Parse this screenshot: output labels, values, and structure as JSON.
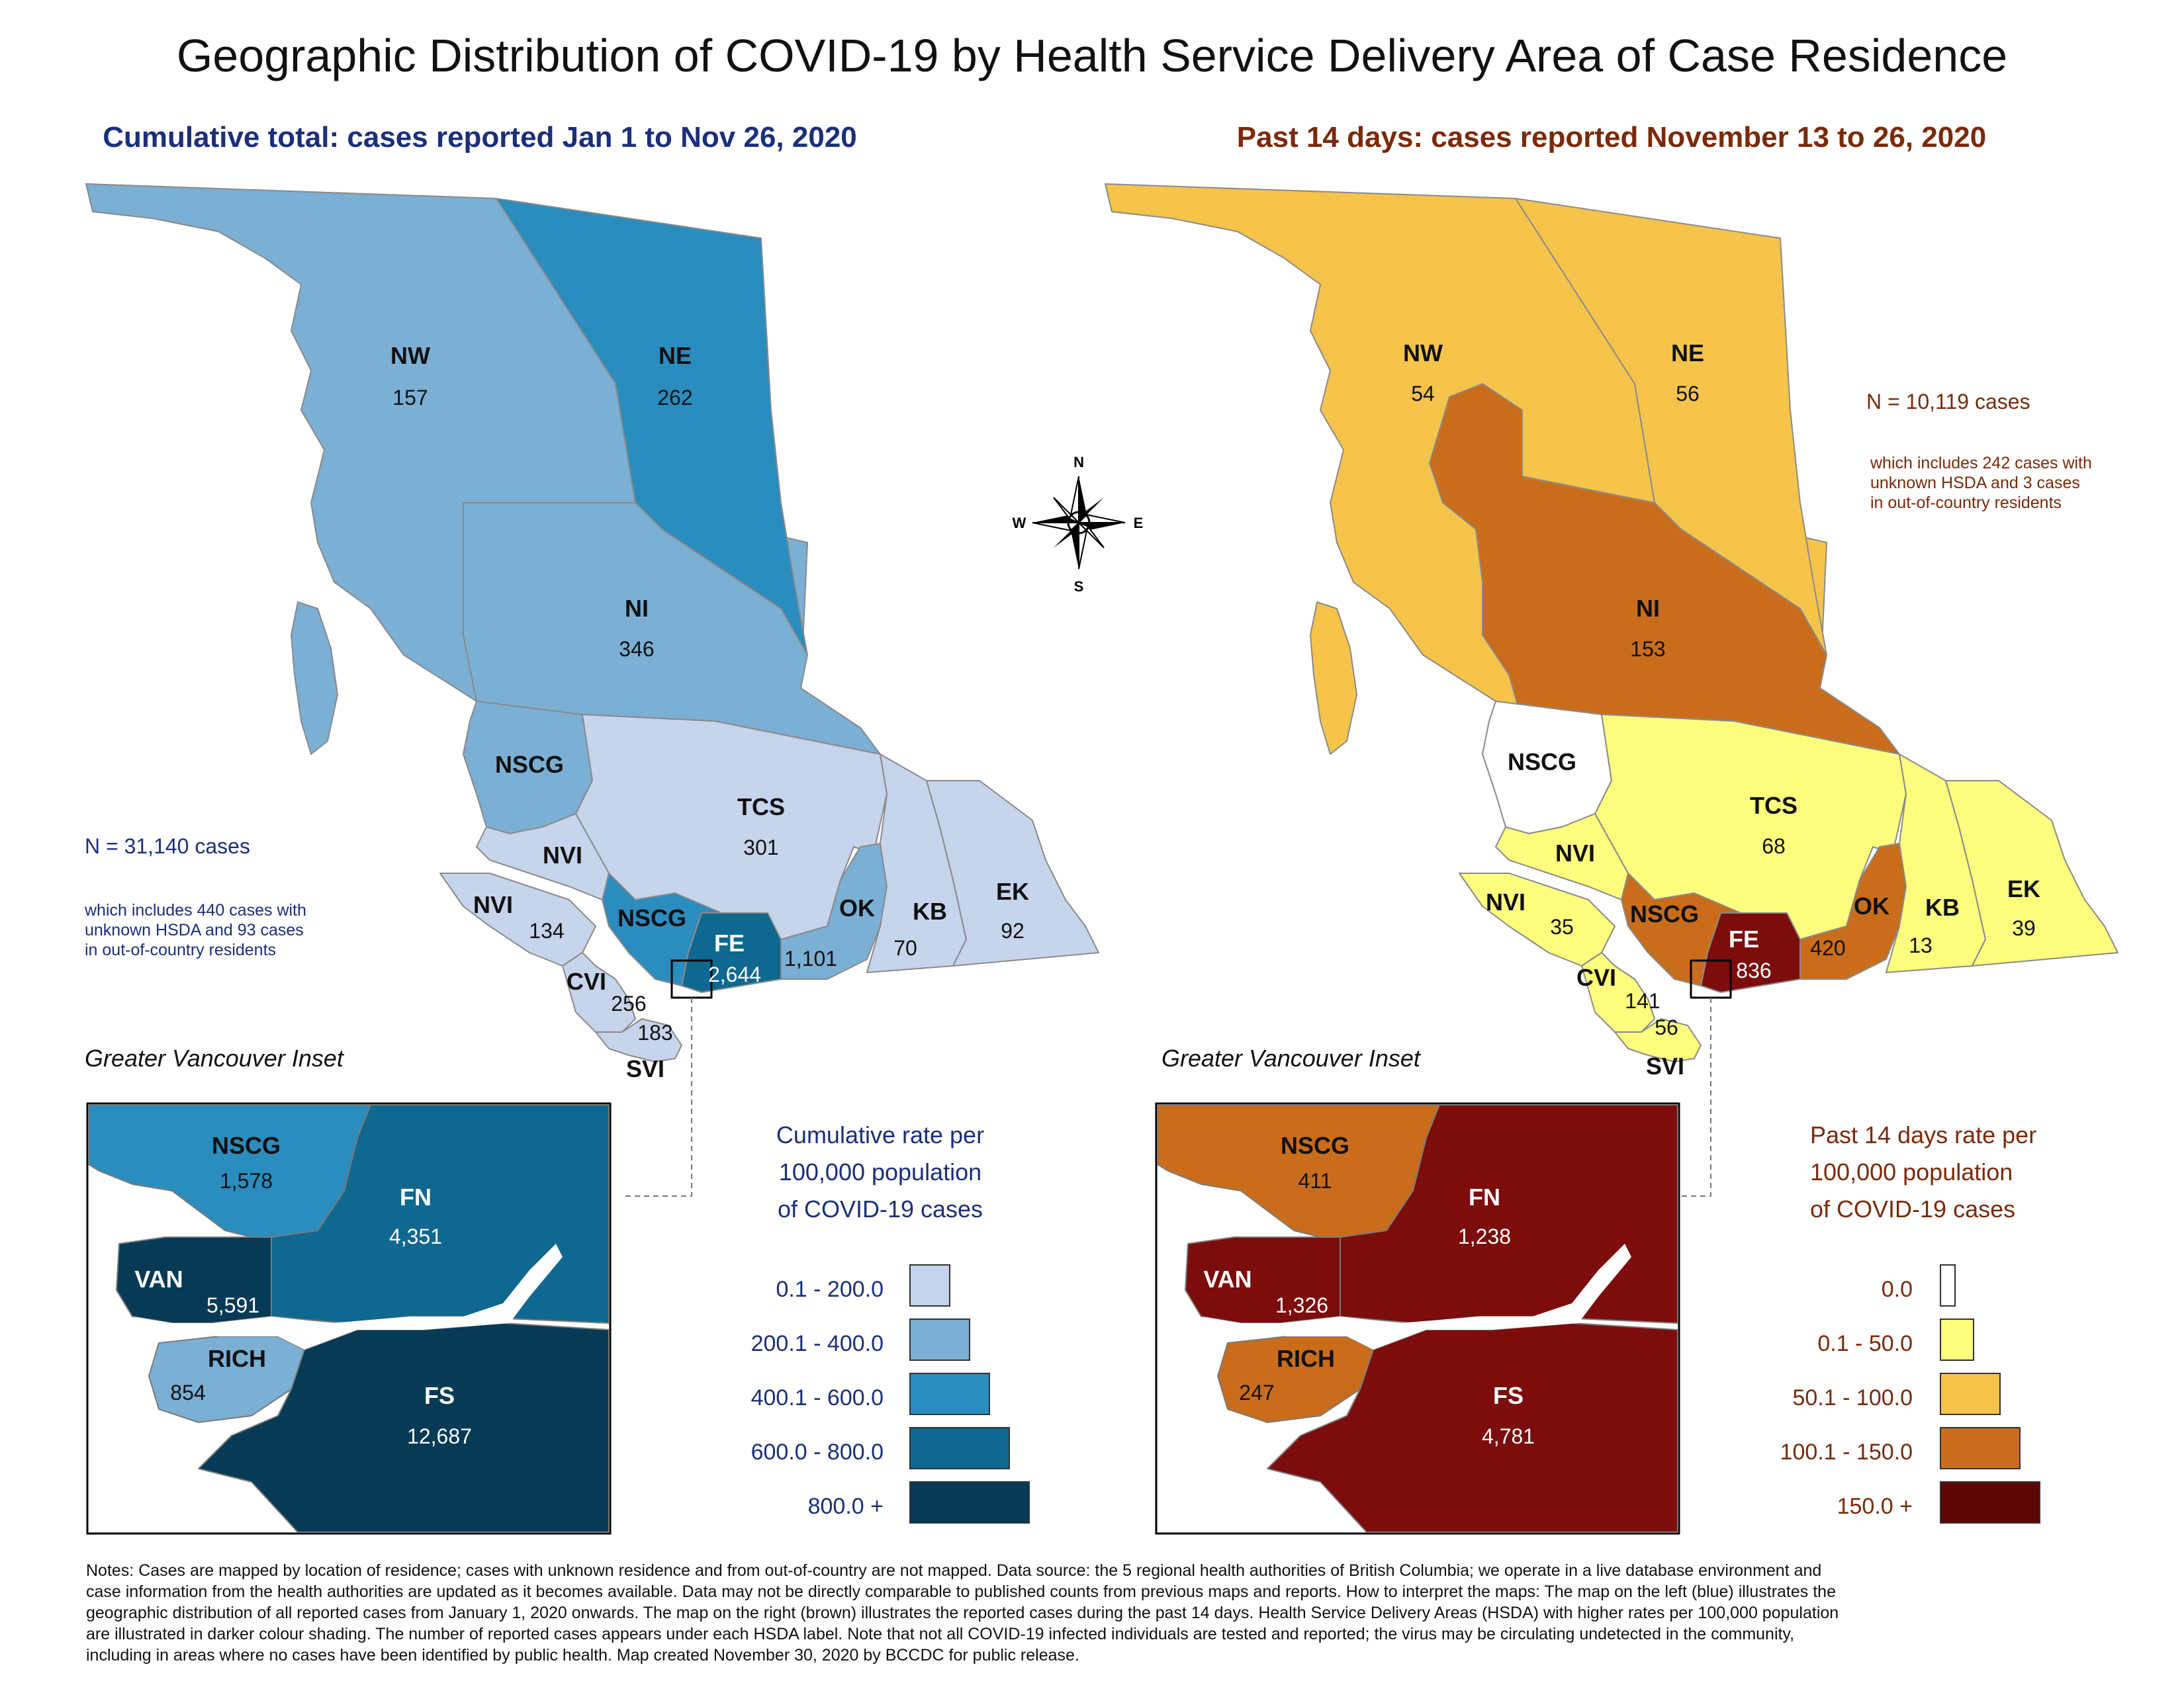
{
  "title": "Geographic Distribution of COVID-19 by Health Service Delivery Area of Case Residence",
  "left": {
    "subtitle": "Cumulative total: cases reported Jan 1 to Nov 26, 2020",
    "total": "N = 31,140 cases",
    "note": [
      "which includes 440 cases with",
      "unknown HSDA and 93 cases",
      "in out-of-country residents"
    ],
    "regions": {
      "NW": {
        "label": "NW",
        "value": "157",
        "color": "#7bafd4"
      },
      "NE": {
        "label": "NE",
        "value": "262",
        "color": "#2b8cbe"
      },
      "NI": {
        "label": "NI",
        "value": "346",
        "color": "#7bafd4"
      },
      "NSCG": {
        "label": "NSCG",
        "color": "#7bafd4"
      },
      "NSCG_S": {
        "label": "NSCG",
        "color": "#2b8cbe"
      },
      "TCS": {
        "label": "TCS",
        "value": "301",
        "color": "#c6d4ec"
      },
      "NVI": {
        "label": "NVI",
        "value": "134",
        "color": "#c6d4ec"
      },
      "NVI_upper": {
        "label": "NVI"
      },
      "CVI": {
        "label": "CVI",
        "value": "256",
        "color": "#c6d4ec"
      },
      "SVI": {
        "label": "SVI",
        "value": "183",
        "color": "#c6d4ec"
      },
      "FE": {
        "label": "FE",
        "value": "2,644",
        "color": "#0f6890"
      },
      "OK": {
        "label": "OK",
        "value": "1,101",
        "color": "#7bafd4"
      },
      "KB": {
        "label": "KB",
        "value": "70",
        "color": "#c6d4ec"
      },
      "EK": {
        "label": "EK",
        "value": "92",
        "color": "#c6d4ec"
      }
    },
    "inset": {
      "title": "Greater Vancouver Inset",
      "NSCG": {
        "label": "NSCG",
        "value": "1,578",
        "color": "#2b8cbe"
      },
      "FN": {
        "label": "FN",
        "value": "4,351",
        "color": "#0f6890"
      },
      "VAN": {
        "label": "VAN",
        "value": "5,591",
        "color": "#063a55"
      },
      "RICH": {
        "label": "RICH",
        "value": "854",
        "color": "#7bafd4"
      },
      "FS": {
        "label": "FS",
        "value": "12,687",
        "color": "#063a55"
      }
    },
    "legend": {
      "title": [
        "Cumulative rate per",
        "100,000 population",
        "of COVID-19 cases"
      ],
      "items": [
        {
          "label": "0.1 - 200.0",
          "color": "#c6d4ec"
        },
        {
          "label": "200.1 - 400.0",
          "color": "#7bafd4"
        },
        {
          "label": "400.1 - 600.0",
          "color": "#2b8cbe"
        },
        {
          "label": "600.0 - 800.0",
          "color": "#0f6890"
        },
        {
          "label": "800.0 +",
          "color": "#063a55"
        }
      ]
    }
  },
  "right": {
    "subtitle": "Past 14 days: cases reported November 13 to 26, 2020",
    "total": "N = 10,119 cases",
    "note": [
      "which includes 242 cases with",
      "unknown HSDA and 3 cases",
      "in out-of-country residents"
    ],
    "regions": {
      "NW": {
        "label": "NW",
        "value": "54",
        "color": "#f6c44b"
      },
      "NE": {
        "label": "NE",
        "value": "56",
        "color": "#f6c44b"
      },
      "NI": {
        "label": "NI",
        "value": "153",
        "color": "#c96d1c"
      },
      "NSCG": {
        "label": "NSCG",
        "color": "#ffffff"
      },
      "NSCG_S": {
        "label": "NSCG",
        "color": "#c96d1c"
      },
      "TCS": {
        "label": "TCS",
        "value": "68",
        "color": "#fdfd7e"
      },
      "NVI": {
        "label": "NVI",
        "value": "35",
        "color": "#fdfd7e"
      },
      "NVI_upper": {
        "label": "NVI"
      },
      "CVI": {
        "label": "CVI",
        "value": "141",
        "color": "#fdfd7e"
      },
      "SVI": {
        "label": "SVI",
        "value": "56",
        "color": "#fdfd7e"
      },
      "FE": {
        "label": "FE",
        "value": "836",
        "color": "#7d0c0c"
      },
      "OK": {
        "label": "OK",
        "value": "420",
        "color": "#c96d1c"
      },
      "KB": {
        "label": "KB",
        "value": "13",
        "color": "#fdfd7e"
      },
      "EK": {
        "label": "EK",
        "value": "39",
        "color": "#fdfd7e"
      }
    },
    "inset": {
      "title": "Greater Vancouver Inset",
      "NSCG": {
        "label": "NSCG",
        "value": "411",
        "color": "#c96d1c"
      },
      "FN": {
        "label": "FN",
        "value": "1,238",
        "color": "#7d0c0c"
      },
      "VAN": {
        "label": "VAN",
        "value": "1,326",
        "color": "#7d0c0c"
      },
      "RICH": {
        "label": "RICH",
        "value": "247",
        "color": "#c96d1c"
      },
      "FS": {
        "label": "FS",
        "value": "4,781",
        "color": "#7d0c0c"
      }
    },
    "legend": {
      "title": [
        "Past 14 days rate per",
        "100,000 population",
        "of COVID-19 cases"
      ],
      "items": [
        {
          "label": "0.0",
          "color": "#ffffff"
        },
        {
          "label": "0.1 - 50.0",
          "color": "#fdfd7e"
        },
        {
          "label": "50.1 - 100.0",
          "color": "#f6c44b"
        },
        {
          "label": "100.1 - 150.0",
          "color": "#c96d1c"
        },
        {
          "label": "150.0 +",
          "color": "#5c0606"
        }
      ]
    }
  },
  "compass": {
    "N": "N",
    "S": "S",
    "E": "E",
    "W": "W"
  },
  "notes": [
    "Notes: Cases are mapped by location of residence; cases with unknown residence and from out-of-country are not mapped. Data source: the 5 regional health authorities of British Columbia; we operate in a live database environment and",
    "case information from the health authorities are updated as it becomes available. Data may not be directly comparable to published counts from previous maps and reports. How to interpret the maps: The map on the left (blue) illustrates the",
    "geographic distribution of all reported cases from January 1, 2020 onwards. The map on the right (brown) illustrates the reported cases during the past 14 days. Health Service Delivery Areas (HSDA) with higher rates per 100,000 population",
    "are illustrated in darker colour shading. The number of reported cases appears under each HSDA label. Note that not all COVID-19 infected individuals are tested and reported; the virus may be circulating undetected in the community,",
    "including in areas where no cases have been identified by public health. Map created November 30, 2020 by BCCDC for public release."
  ]
}
